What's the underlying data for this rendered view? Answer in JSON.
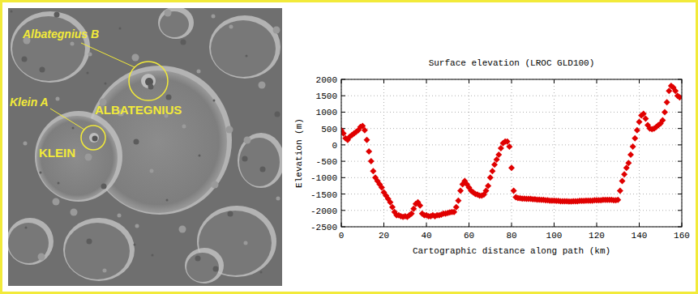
{
  "photo_labels": [
    "Albategnius B",
    "Klein A",
    "ALBATEGNIUS",
    "KLEIN"
  ],
  "chart_data": {
    "type": "scatter",
    "title": "Surface elevation (LROC GLD100)",
    "x_label": "Cartographic distance along path (km)",
    "y_label": "Elevation (m)",
    "color": "#e00000",
    "marker": "diamond",
    "grid": true,
    "xlim": [
      0,
      160
    ],
    "xticks": [
      0,
      20,
      40,
      60,
      80,
      100,
      120,
      140,
      160
    ],
    "ylim": [
      -2500,
      2000
    ],
    "yticks": [
      -2500,
      -2000,
      -1500,
      -1000,
      -500,
      0,
      500,
      1000,
      1500,
      2000
    ],
    "x": [
      0,
      1,
      2,
      3,
      4,
      5,
      6,
      7,
      8,
      9,
      10,
      11,
      12,
      13,
      14,
      15,
      16,
      17,
      18,
      19,
      20,
      21,
      22,
      23,
      24,
      25,
      26,
      27,
      28,
      29,
      30,
      31,
      32,
      33,
      34,
      35,
      36,
      37,
      38,
      39,
      40,
      41,
      42,
      43,
      44,
      45,
      46,
      47,
      48,
      49,
      50,
      51,
      52,
      53,
      54,
      55,
      56,
      57,
      58,
      59,
      60,
      61,
      62,
      63,
      64,
      65,
      66,
      67,
      68,
      69,
      70,
      71,
      72,
      73,
      74,
      75,
      76,
      77,
      78,
      79,
      80,
      81,
      82,
      83,
      84,
      85,
      86,
      87,
      88,
      89,
      90,
      91,
      92,
      93,
      94,
      95,
      96,
      97,
      98,
      99,
      100,
      101,
      102,
      103,
      104,
      105,
      106,
      107,
      108,
      109,
      110,
      111,
      112,
      113,
      114,
      115,
      116,
      117,
      118,
      119,
      120,
      121,
      122,
      123,
      124,
      125,
      126,
      127,
      128,
      129,
      130,
      131,
      132,
      133,
      134,
      135,
      136,
      137,
      138,
      139,
      140,
      141,
      142,
      143,
      144,
      145,
      146,
      147,
      148,
      149,
      150,
      151,
      152,
      153,
      154,
      155,
      156,
      157,
      158,
      159
    ],
    "values": [
      450,
      350,
      200,
      150,
      250,
      300,
      350,
      400,
      450,
      550,
      580,
      450,
      150,
      -200,
      -500,
      -800,
      -1000,
      -1100,
      -1200,
      -1300,
      -1450,
      -1550,
      -1650,
      -1750,
      -1900,
      -2050,
      -2150,
      -2150,
      -2180,
      -2200,
      -2180,
      -2200,
      -2150,
      -2100,
      -1950,
      -1800,
      -1750,
      -1850,
      -2100,
      -2150,
      -2150,
      -2180,
      -2180,
      -2150,
      -2180,
      -2150,
      -2150,
      -2130,
      -2100,
      -2100,
      -2080,
      -2060,
      -2050,
      -2050,
      -1900,
      -1700,
      -1400,
      -1200,
      -1100,
      -1200,
      -1300,
      -1400,
      -1450,
      -1500,
      -1520,
      -1550,
      -1550,
      -1520,
      -1400,
      -1250,
      -1000,
      -800,
      -600,
      -450,
      -300,
      -100,
      50,
      100,
      100,
      -50,
      -700,
      -1400,
      -1600,
      -1620,
      -1630,
      -1640,
      -1640,
      -1650,
      -1650,
      -1650,
      -1660,
      -1660,
      -1670,
      -1670,
      -1680,
      -1680,
      -1690,
      -1690,
      -1700,
      -1700,
      -1700,
      -1710,
      -1710,
      -1720,
      -1720,
      -1720,
      -1720,
      -1730,
      -1730,
      -1720,
      -1720,
      -1720,
      -1710,
      -1710,
      -1710,
      -1700,
      -1700,
      -1700,
      -1700,
      -1690,
      -1690,
      -1690,
      -1690,
      -1680,
      -1680,
      -1680,
      -1680,
      -1680,
      -1690,
      -1690,
      -1680,
      -1400,
      -1100,
      -900,
      -700,
      -550,
      -300,
      -50,
      200,
      450,
      700,
      900,
      950,
      800,
      600,
      500,
      480,
      500,
      550,
      600,
      650,
      750,
      1000,
      1300,
      1650,
      1800,
      1750,
      1650,
      1500,
      1450
    ]
  }
}
